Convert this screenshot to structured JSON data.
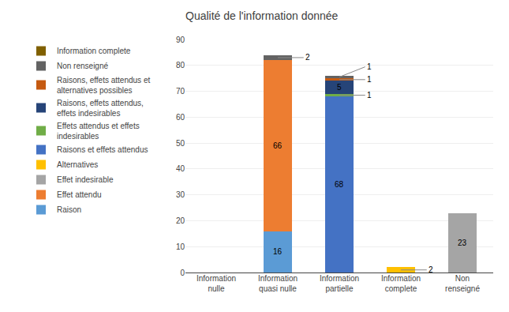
{
  "chart_data": {
    "type": "bar",
    "stacked": true,
    "title": "Qualité de l'information donnée",
    "categories": [
      "Information\nnulle",
      "Information\nquasi nulle",
      "Information\npartielle",
      "Information\ncomplete",
      "Non\nrenseigné"
    ],
    "series": [
      {
        "name": "Raison",
        "color": "#5B9BD5",
        "values": [
          0,
          16,
          0,
          0,
          0
        ]
      },
      {
        "name": "Effet attendu",
        "color": "#ED7D31",
        "values": [
          0,
          66,
          0,
          0,
          0
        ]
      },
      {
        "name": "Effet indesirable",
        "color": "#A5A5A5",
        "values": [
          0,
          0,
          0,
          0,
          23
        ]
      },
      {
        "name": "Alternatives",
        "color": "#FFC000",
        "values": [
          0,
          0,
          0,
          2,
          0
        ]
      },
      {
        "name": "Raisons et effets attendus",
        "color": "#4472C4",
        "values": [
          0,
          0,
          68,
          0,
          0
        ]
      },
      {
        "name": "Effets attendus et effets\nindesirables",
        "color": "#70AD47",
        "values": [
          0,
          0,
          1,
          0,
          0
        ]
      },
      {
        "name": "Raisons, effets attendus,\neffets indesirables",
        "color": "#264478",
        "values": [
          0,
          0,
          5,
          0,
          0
        ]
      },
      {
        "name": "Raisons, effets attendus et\nalternatives possibles",
        "color": "#C55A11",
        "values": [
          0,
          0,
          1,
          0,
          0
        ]
      },
      {
        "name": "Non renseigné",
        "color": "#636363",
        "values": [
          0,
          2,
          1,
          0,
          0
        ]
      },
      {
        "name": "Information complete",
        "color": "#806000",
        "values": [
          0,
          0,
          0,
          0,
          0
        ]
      }
    ],
    "ylim": [
      0,
      90
    ],
    "yticks": [
      0,
      10,
      20,
      30,
      40,
      50,
      60,
      70,
      80,
      90
    ],
    "grid": true,
    "legend": "upper left",
    "data_labels": true
  }
}
